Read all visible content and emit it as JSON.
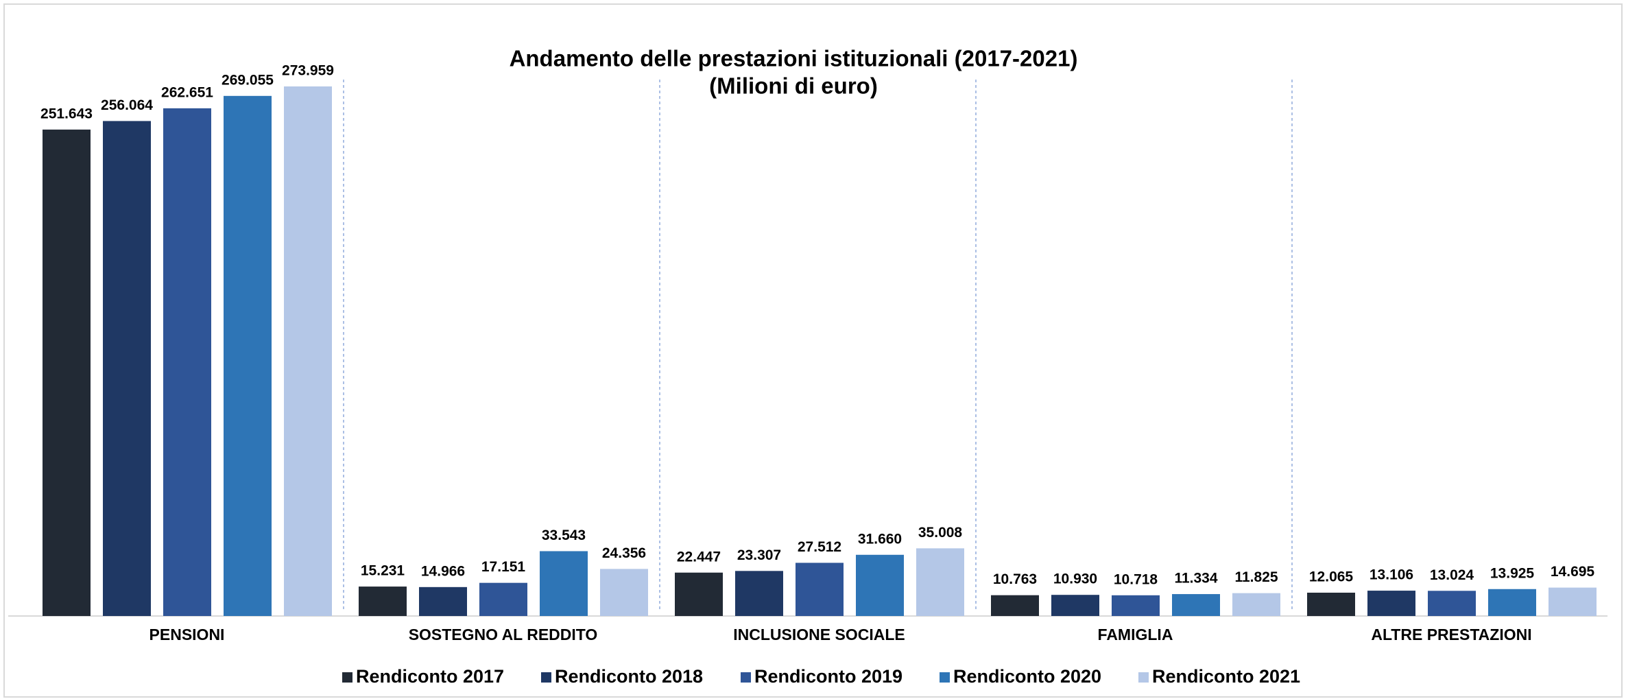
{
  "chart_data": {
    "type": "bar",
    "title": "Andamento delle prestazioni istituzionali (2017-2021)",
    "subtitle": "(Milioni di euro)",
    "categories": [
      "PENSIONI",
      "SOSTEGNO AL REDDITO",
      "INCLUSIONE SOCIALE",
      "FAMIGLIA",
      "ALTRE PRESTAZIONI"
    ],
    "series": [
      {
        "name": "Rendiconto 2017",
        "color": "#222a35",
        "values": [
          251643,
          15231,
          22447,
          10763,
          12065
        ],
        "value_labels": [
          "251.643",
          "15.231",
          "22.447",
          "10.763",
          "12.065"
        ]
      },
      {
        "name": "Rendiconto 2018",
        "color": "#1f3864",
        "values": [
          256064,
          14966,
          23307,
          10930,
          13106
        ],
        "value_labels": [
          "256.064",
          "14.966",
          "23.307",
          "10.930",
          "13.106"
        ]
      },
      {
        "name": "Rendiconto 2019",
        "color": "#2f5597",
        "values": [
          262651,
          17151,
          27512,
          10718,
          13024
        ],
        "value_labels": [
          "262.651",
          "17.151",
          "27.512",
          "10.718",
          "13.024"
        ]
      },
      {
        "name": "Rendiconto 2020",
        "color": "#2e75b6",
        "values": [
          269055,
          33543,
          31660,
          11334,
          13925
        ],
        "value_labels": [
          "269.055",
          "33.543",
          "31.660",
          "11.334",
          "13.925"
        ]
      },
      {
        "name": "Rendiconto 2021",
        "color": "#b4c7e7",
        "values": [
          273959,
          24356,
          35008,
          11825,
          14695
        ],
        "value_labels": [
          "273.959",
          "24.356",
          "35.008",
          "11.825",
          "14.695"
        ]
      }
    ]
  }
}
